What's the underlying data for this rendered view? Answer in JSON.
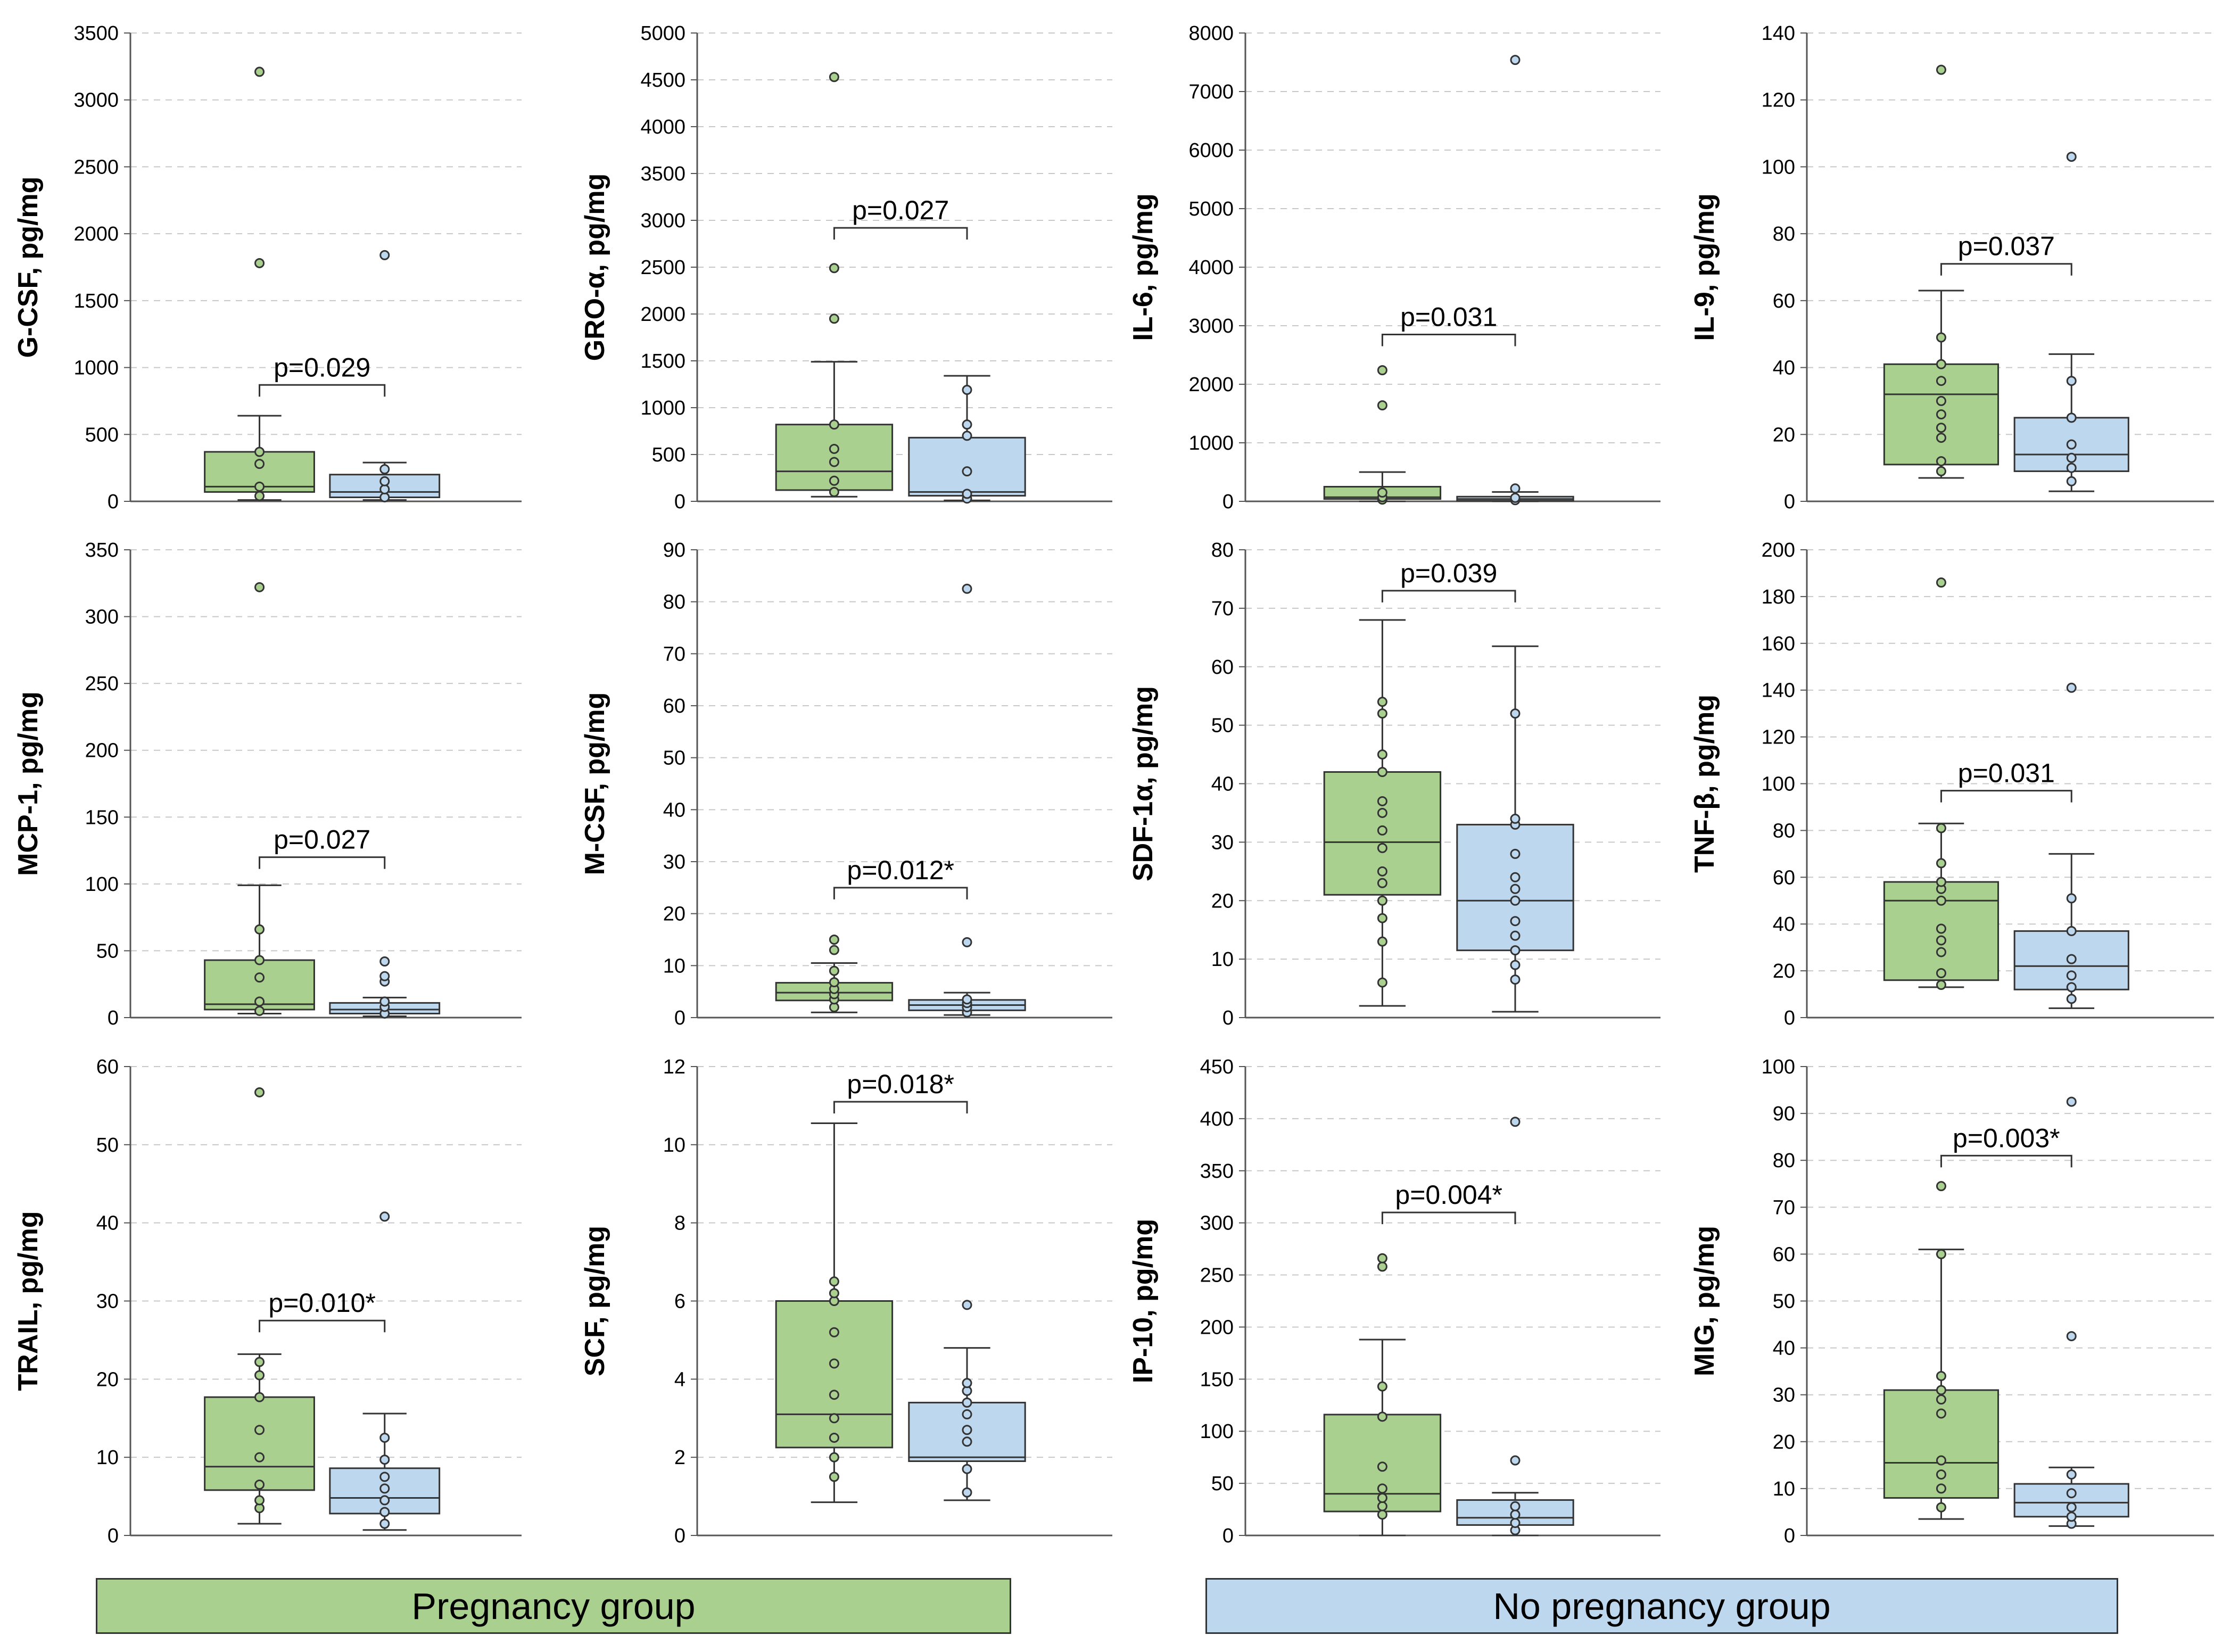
{
  "colors": {
    "pregnancy": "#a9d08e",
    "no_pregnancy": "#bdd7ee",
    "outline": "#333333",
    "grid": "#c8c8c8"
  },
  "legend": {
    "pregnancy": "Pregnancy group",
    "no_pregnancy": "No pregnancy group"
  },
  "chart_data": [
    {
      "type": "box",
      "ylabel": "G-CSF, pg/mg",
      "ylim": [
        0,
        3500
      ],
      "yticks": [
        0,
        500,
        1000,
        1500,
        2000,
        2500,
        3000,
        3500
      ],
      "pvalue": "p=0.029",
      "bracket_y": 870,
      "series": [
        {
          "name": "Pregnancy group",
          "whisker_low": 10,
          "q1": 70,
          "median": 110,
          "q3": 370,
          "whisker_high": 640,
          "points": [
            40,
            110,
            280,
            370,
            3210,
            1780
          ]
        },
        {
          "name": "No pregnancy group",
          "whisker_low": 10,
          "q1": 30,
          "median": 70,
          "q3": 200,
          "whisker_high": 290,
          "points": [
            30,
            90,
            150,
            240,
            1840
          ]
        }
      ]
    },
    {
      "type": "box",
      "ylabel": "GRO-α, pg/mg",
      "ylim": [
        0,
        5000
      ],
      "yticks": [
        0,
        500,
        1000,
        1500,
        2000,
        2500,
        3000,
        3500,
        4000,
        4500,
        5000
      ],
      "pvalue": "p=0.027",
      "bracket_y": 2920,
      "series": [
        {
          "name": "Pregnancy group",
          "whisker_low": 50,
          "q1": 120,
          "median": 320,
          "q3": 820,
          "whisker_high": 1490,
          "points": [
            100,
            220,
            420,
            560,
            820,
            1950,
            2490,
            4530
          ]
        },
        {
          "name": "No pregnancy group",
          "whisker_low": 10,
          "q1": 60,
          "median": 100,
          "q3": 680,
          "whisker_high": 1340,
          "points": [
            30,
            80,
            320,
            700,
            820,
            1190
          ]
        }
      ]
    },
    {
      "type": "box",
      "ylabel": "IL-6, pg/mg",
      "ylim": [
        0,
        8000
      ],
      "yticks": [
        0,
        1000,
        2000,
        3000,
        4000,
        5000,
        6000,
        7000,
        8000
      ],
      "pvalue": "p=0.031",
      "bracket_y": 2850,
      "series": [
        {
          "name": "Pregnancy group",
          "whisker_low": 0,
          "q1": 40,
          "median": 70,
          "q3": 250,
          "whisker_high": 500,
          "points": [
            30,
            70,
            150,
            1640,
            2240
          ]
        },
        {
          "name": "No pregnancy group",
          "whisker_low": 0,
          "q1": 10,
          "median": 40,
          "q3": 80,
          "whisker_high": 160,
          "points": [
            20,
            60,
            220,
            7540
          ]
        }
      ]
    },
    {
      "type": "box",
      "ylabel": "IL-9, pg/mg",
      "ylim": [
        0,
        140
      ],
      "yticks": [
        0,
        20,
        40,
        60,
        80,
        100,
        120,
        140
      ],
      "pvalue": "p=0.037",
      "bracket_y": 71,
      "series": [
        {
          "name": "Pregnancy group",
          "whisker_low": 7,
          "q1": 11,
          "median": 32,
          "q3": 41,
          "whisker_high": 63,
          "points": [
            9,
            12,
            19,
            22,
            26,
            30,
            36,
            41,
            49,
            129
          ]
        },
        {
          "name": "No pregnancy group",
          "whisker_low": 3,
          "q1": 9,
          "median": 14,
          "q3": 25,
          "whisker_high": 44,
          "points": [
            6,
            10,
            13,
            17,
            25,
            36,
            103
          ]
        }
      ]
    },
    {
      "type": "box",
      "ylabel": "MCP-1, pg/mg",
      "ylim": [
        0,
        350
      ],
      "yticks": [
        0,
        50,
        100,
        150,
        200,
        250,
        300,
        350
      ],
      "pvalue": "p=0.027",
      "bracket_y": 120,
      "series": [
        {
          "name": "Pregnancy group",
          "whisker_low": 3,
          "q1": 6,
          "median": 10,
          "q3": 43,
          "whisker_high": 99,
          "points": [
            5,
            12,
            30,
            43,
            66,
            322
          ]
        },
        {
          "name": "No pregnancy group",
          "whisker_low": 1,
          "q1": 3,
          "median": 6,
          "q3": 11,
          "whisker_high": 15,
          "points": [
            3,
            8,
            12,
            27,
            31,
            42
          ]
        }
      ]
    },
    {
      "type": "box",
      "ylabel": "M-CSF, pg/mg",
      "ylim": [
        0,
        90
      ],
      "yticks": [
        0,
        10,
        20,
        30,
        40,
        50,
        60,
        70,
        80,
        90
      ],
      "pvalue": "p=0.012*",
      "bracket_y": 25,
      "series": [
        {
          "name": "Pregnancy group",
          "whisker_low": 1,
          "q1": 3.3,
          "median": 4.8,
          "q3": 6.7,
          "whisker_high": 10.5,
          "points": [
            2,
            3.5,
            4.5,
            5.5,
            6.8,
            9,
            13,
            15
          ]
        },
        {
          "name": "No pregnancy group",
          "whisker_low": 0.5,
          "q1": 1.4,
          "median": 2.4,
          "q3": 3.4,
          "whisker_high": 4.8,
          "points": [
            1,
            2,
            2.8,
            3.5,
            14.5,
            82.5
          ]
        }
      ]
    },
    {
      "type": "box",
      "ylabel": "SDF-1α, pg/mg",
      "ylim": [
        0,
        80
      ],
      "yticks": [
        0,
        10,
        20,
        30,
        40,
        50,
        60,
        70,
        80
      ],
      "pvalue": "p=0.039",
      "bracket_y": 73,
      "series": [
        {
          "name": "Pregnancy group",
          "whisker_low": 2,
          "q1": 21,
          "median": 30,
          "q3": 42,
          "whisker_high": 68,
          "points": [
            6,
            13,
            17,
            20,
            23,
            25,
            29,
            32,
            35,
            37,
            42,
            45,
            52,
            54
          ]
        },
        {
          "name": "No pregnancy group",
          "whisker_low": 1,
          "q1": 11.5,
          "median": 20,
          "q3": 33,
          "whisker_high": 63.5,
          "points": [
            6.5,
            9,
            11.5,
            14,
            16.5,
            20,
            22,
            24,
            28,
            33,
            34,
            52
          ]
        }
      ]
    },
    {
      "type": "box",
      "ylabel": "TNF-β, pg/mg",
      "ylim": [
        0,
        200
      ],
      "yticks": [
        0,
        20,
        40,
        60,
        80,
        100,
        120,
        140,
        160,
        180,
        200
      ],
      "pvalue": "p=0.031",
      "bracket_y": 97,
      "series": [
        {
          "name": "Pregnancy group",
          "whisker_low": 13,
          "q1": 16,
          "median": 50,
          "q3": 58,
          "whisker_high": 83,
          "points": [
            14,
            19,
            28,
            33,
            38,
            50,
            55,
            58,
            66,
            81,
            186
          ]
        },
        {
          "name": "No pregnancy group",
          "whisker_low": 4,
          "q1": 12,
          "median": 22,
          "q3": 37,
          "whisker_high": 70,
          "points": [
            8,
            13,
            18,
            25,
            37,
            51,
            141
          ]
        }
      ]
    },
    {
      "type": "box",
      "ylabel": "TRAIL, pg/mg",
      "ylim": [
        0,
        60
      ],
      "yticks": [
        0,
        10,
        20,
        30,
        40,
        50,
        60
      ],
      "pvalue": "p=0.010*",
      "bracket_y": 27.5,
      "series": [
        {
          "name": "Pregnancy group",
          "whisker_low": 1.5,
          "q1": 5.8,
          "median": 8.8,
          "q3": 17.7,
          "whisker_high": 23.2,
          "points": [
            3.5,
            4.5,
            6.5,
            10,
            13.5,
            17.7,
            20.5,
            22.2,
            56.7
          ]
        },
        {
          "name": "No pregnancy group",
          "whisker_low": 0.7,
          "q1": 2.8,
          "median": 4.8,
          "q3": 8.6,
          "whisker_high": 15.6,
          "points": [
            1.5,
            3,
            4.5,
            6,
            7.5,
            9.7,
            12.5,
            40.8
          ]
        }
      ]
    },
    {
      "type": "box",
      "ylabel": "SCF, pg/mg",
      "ylim": [
        0,
        12
      ],
      "yticks": [
        0,
        2,
        4,
        6,
        8,
        10,
        12
      ],
      "pvalue": "p=0.018*",
      "bracket_y": 11.1,
      "series": [
        {
          "name": "Pregnancy group",
          "whisker_low": 0.85,
          "q1": 2.25,
          "median": 3.1,
          "q3": 6.0,
          "whisker_high": 10.55,
          "points": [
            1.5,
            2,
            2.5,
            3,
            3.6,
            4.4,
            5.2,
            6,
            6.2,
            6.5
          ]
        },
        {
          "name": "No pregnancy group",
          "whisker_low": 0.9,
          "q1": 1.9,
          "median": 2,
          "q3": 3.4,
          "whisker_high": 4.8,
          "points": [
            1.1,
            1.7,
            2.4,
            2.7,
            3.1,
            3.4,
            3.7,
            3.9,
            5.9
          ]
        }
      ]
    },
    {
      "type": "box",
      "ylabel": "IP-10, pg/mg",
      "ylim": [
        0,
        450
      ],
      "yticks": [
        0,
        50,
        100,
        150,
        200,
        250,
        300,
        350,
        400,
        450
      ],
      "pvalue": "p=0.004*",
      "bracket_y": 310,
      "series": [
        {
          "name": "Pregnancy group",
          "whisker_low": 0,
          "q1": 23,
          "median": 40,
          "q3": 116,
          "whisker_high": 188,
          "points": [
            20,
            28,
            36,
            45,
            66,
            114,
            143,
            258,
            266
          ]
        },
        {
          "name": "No pregnancy group",
          "whisker_low": 0,
          "q1": 10,
          "median": 17,
          "q3": 34,
          "whisker_high": 41,
          "points": [
            5,
            12,
            20,
            28,
            72,
            397
          ]
        }
      ]
    },
    {
      "type": "box",
      "ylabel": "MIG, pg/mg",
      "ylim": [
        0,
        100
      ],
      "yticks": [
        0,
        10,
        20,
        30,
        40,
        50,
        60,
        70,
        80,
        90,
        100
      ],
      "pvalue": "p=0.003*",
      "bracket_y": 81,
      "series": [
        {
          "name": "Pregnancy group",
          "whisker_low": 3.5,
          "q1": 8,
          "median": 15.5,
          "q3": 31,
          "whisker_high": 61,
          "points": [
            6,
            10,
            13,
            16,
            26,
            29,
            31,
            34,
            60,
            74.5
          ]
        },
        {
          "name": "No pregnancy group",
          "whisker_low": 2,
          "q1": 4,
          "median": 7,
          "q3": 11,
          "whisker_high": 14.5,
          "points": [
            2.5,
            4,
            6,
            9,
            13,
            42.5,
            92.5
          ]
        }
      ]
    }
  ]
}
